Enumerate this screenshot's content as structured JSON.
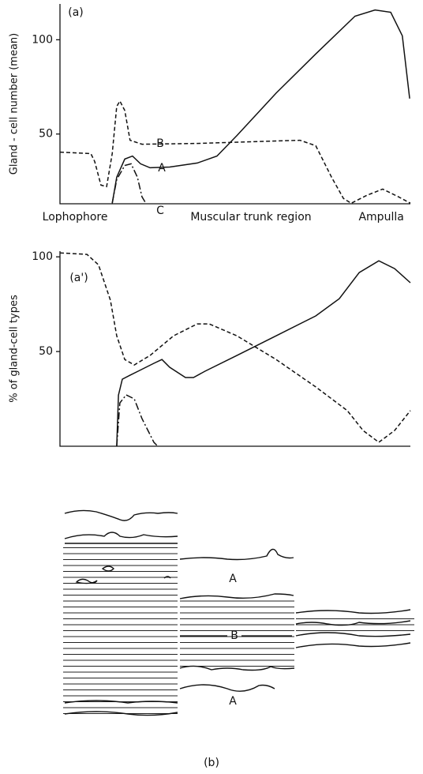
{
  "chart_data": [
    {
      "type": "line",
      "panel_label": "(a)",
      "y_label": "Gland - cell number (mean)",
      "xlim": [
        0,
        100
      ],
      "ylim": [
        13,
        119
      ],
      "yticks": [
        50,
        100
      ],
      "xticks": [
        {
          "value": 4.3,
          "label": "Lophophore"
        },
        {
          "value": 54.5,
          "label": "Muscular trunk region"
        },
        {
          "value": 91.7,
          "label": "Ampulla"
        }
      ],
      "series": [
        {
          "name": "A",
          "color": "#111111",
          "dash": "solid",
          "x": [
            14.9,
            16.2,
            18.5,
            20.7,
            23,
            25.7,
            31.3,
            39.2,
            44.8,
            50.5,
            61.7,
            73,
            84.2,
            89.9,
            94.4,
            97.7,
            99.8
          ],
          "values": [
            13.3,
            27.1,
            36.7,
            38.3,
            34.2,
            32.1,
            32.5,
            34.6,
            38.3,
            49.2,
            71.7,
            92.5,
            112.5,
            115.8,
            114.6,
            102.1,
            68.8
          ]
        },
        {
          "name": "B",
          "color": "#111111",
          "dash": "dashed",
          "x": [
            0,
            8.8,
            9.9,
            11.7,
            13.3,
            14.9,
            16.2,
            17.1,
            18.5,
            20,
            23.4,
            39.2,
            68.5,
            73,
            77.5,
            80.9,
            83.1,
            87.6,
            92.1,
            96.6,
            100
          ],
          "values": [
            40.4,
            39.6,
            35.4,
            22.9,
            22.1,
            39.6,
            64.6,
            67.5,
            62.5,
            46.7,
            44.6,
            45,
            46.7,
            43.8,
            27.1,
            15.8,
            13.3,
            17.5,
            20.8,
            16.7,
            13.3
          ]
        },
        {
          "name": "C",
          "color": "#111111",
          "dash": "dashdot",
          "x": [
            14.9,
            16.2,
            18.5,
            20.3,
            22.1,
            23.4,
            24.5
          ],
          "values": [
            13.3,
            25.8,
            33.3,
            34.2,
            27.1,
            16.7,
            13.3
          ]
        }
      ]
    },
    {
      "type": "line",
      "panel_label": "(a')",
      "y_label": "% of gland-cell types",
      "xlim": [
        0,
        100
      ],
      "ylim": [
        0,
        103
      ],
      "yticks": [
        50,
        100
      ],
      "series": [
        {
          "color": "#111111",
          "dash": "solid",
          "x": [
            16.2,
            16.7,
            17.8,
            20,
            22.3,
            26.8,
            29.1,
            31.3,
            35.8,
            38.1,
            41.4,
            50.5,
            61.7,
            73,
            79.7,
            85.4,
            91,
            95.5,
            100
          ],
          "values": [
            0,
            27,
            35.4,
            37.5,
            39.6,
            43.8,
            45.8,
            41.7,
            36.3,
            36.3,
            39.6,
            47.9,
            58.3,
            68.8,
            77.9,
            91.7,
            97.9,
            93.8,
            86.3
          ]
        },
        {
          "color": "#111111",
          "dash": "dashed",
          "x": [
            0,
            7.7,
            11,
            14.4,
            16.2,
            18.5,
            21.2,
            25.7,
            32.4,
            39.2,
            42.6,
            50.5,
            61.7,
            73,
            82,
            86.5,
            91,
            95.5,
            100
          ],
          "values": [
            102.1,
            101.3,
            95.8,
            77.1,
            58.3,
            45.8,
            42.9,
            47.9,
            58.3,
            64.6,
            64.6,
            58.3,
            45.8,
            31.3,
            18.8,
            8.3,
            2.1,
            8.3,
            18.8
          ]
        },
        {
          "color": "#111111",
          "dash": "dashdot",
          "x": [
            16.2,
            17.1,
            18.9,
            21.2,
            23.4,
            26.8,
            27.9
          ],
          "values": [
            0,
            22.9,
            27.1,
            25,
            14.6,
            2.1,
            0
          ]
        }
      ]
    }
  ],
  "diagram": {
    "labels": [
      "A",
      "B",
      "A"
    ],
    "caption": "(b)"
  }
}
